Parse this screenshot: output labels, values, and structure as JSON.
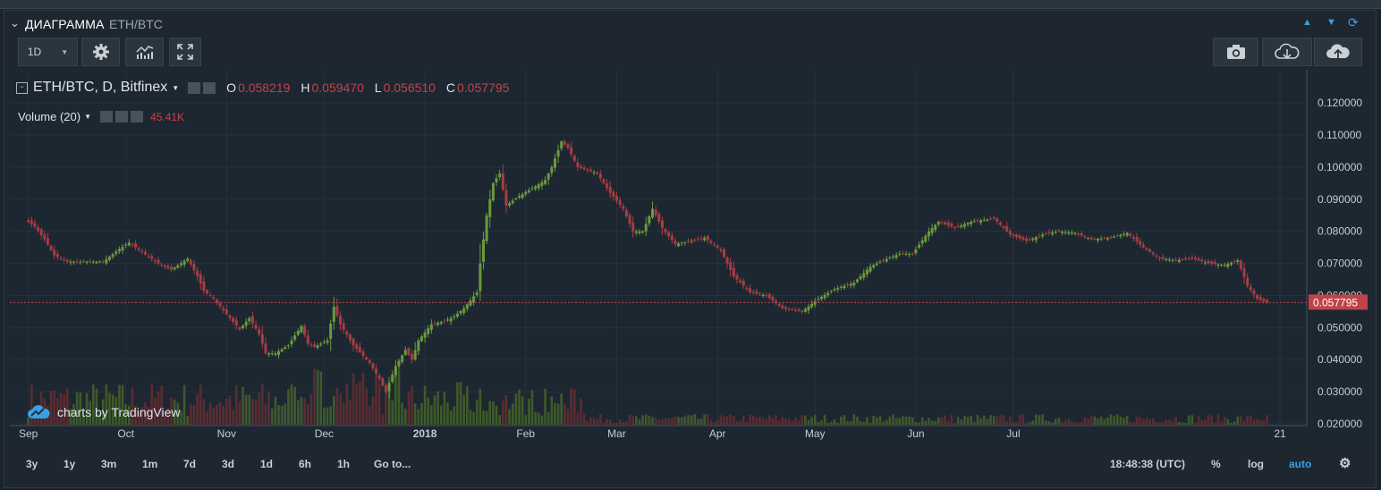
{
  "window": {
    "title": "ДИАГРАММА",
    "symbol": "ETH/BTC"
  },
  "toolbar": {
    "interval": "1D"
  },
  "legend": {
    "main": "ETH/BTC, D, Bitfinex",
    "o_label": "O",
    "o_value": "0.058219",
    "h_label": "H",
    "h_value": "0.059470",
    "l_label": "L",
    "l_value": "0.056510",
    "c_label": "C",
    "c_value": "0.057795",
    "volume_label": "Volume (20)",
    "volume_value": "45.41K"
  },
  "watermark": "charts by TradingView",
  "bottom": {
    "ranges": [
      "3y",
      "1y",
      "3m",
      "1m",
      "7d",
      "3d",
      "1d",
      "6h",
      "1h"
    ],
    "goto": "Go to...",
    "time": "18:48:38 (UTC)",
    "pct": "%",
    "log": "log",
    "auto": "auto"
  },
  "colors": {
    "up": "#6a9a3c",
    "down": "#a83c43",
    "price_line": "#c0434a",
    "accent": "#3aa0e4"
  },
  "chart_data": {
    "type": "candlestick",
    "symbol": "ETH/BTC",
    "interval": "D",
    "exchange": "Bitfinex",
    "last_price": 0.057795,
    "last_price_label": "0.057795",
    "ylim": [
      0.0175,
      0.127
    ],
    "yticks": [
      "0.020000",
      "0.030000",
      "0.040000",
      "0.050000",
      "0.060000",
      "0.070000",
      "0.080000",
      "0.090000",
      "0.100000",
      "0.110000",
      "0.120000"
    ],
    "xticks": [
      "Sep",
      "Oct",
      "Nov",
      "Dec",
      "2018",
      "Feb",
      "Mar",
      "Apr",
      "May",
      "Jun",
      "Jul",
      "21"
    ],
    "grid": true,
    "close_path": [
      [
        "2017-09-01",
        0.083
      ],
      [
        "2017-09-03",
        0.0815
      ],
      [
        "2017-09-06",
        0.0775
      ],
      [
        "2017-09-09",
        0.0725
      ],
      [
        "2017-09-13",
        0.0705
      ],
      [
        "2017-09-18",
        0.0705
      ],
      [
        "2017-09-24",
        0.0705
      ],
      [
        "2017-09-29",
        0.0745
      ],
      [
        "2017-10-02",
        0.0765
      ],
      [
        "2017-10-06",
        0.0735
      ],
      [
        "2017-10-11",
        0.07
      ],
      [
        "2017-10-15",
        0.068
      ],
      [
        "2017-10-20",
        0.0715
      ],
      [
        "2017-10-23",
        0.066
      ],
      [
        "2017-10-25",
        0.0615
      ],
      [
        "2017-10-28",
        0.059
      ],
      [
        "2017-11-02",
        0.053
      ],
      [
        "2017-11-05",
        0.0495
      ],
      [
        "2017-11-08",
        0.053
      ],
      [
        "2017-11-11",
        0.048
      ],
      [
        "2017-11-13",
        0.042
      ],
      [
        "2017-11-16",
        0.042
      ],
      [
        "2017-11-20",
        0.0445
      ],
      [
        "2017-11-24",
        0.0505
      ],
      [
        "2017-11-26",
        0.045
      ],
      [
        "2017-11-28",
        0.044
      ],
      [
        "2017-12-02",
        0.046
      ],
      [
        "2017-12-04",
        0.0565
      ],
      [
        "2017-12-06",
        0.051
      ],
      [
        "2017-12-10",
        0.0445
      ],
      [
        "2017-12-15",
        0.039
      ],
      [
        "2017-12-18",
        0.034
      ],
      [
        "2017-12-20",
        0.03
      ],
      [
        "2017-12-23",
        0.038
      ],
      [
        "2017-12-26",
        0.043
      ],
      [
        "2017-12-28",
        0.04
      ],
      [
        "2017-12-30",
        0.046
      ],
      [
        "2018-01-03",
        0.051
      ],
      [
        "2018-01-07",
        0.052
      ],
      [
        "2018-01-10",
        0.0535
      ],
      [
        "2018-01-13",
        0.056
      ],
      [
        "2018-01-17",
        0.061
      ],
      [
        "2018-01-18",
        0.07
      ],
      [
        "2018-01-20",
        0.085
      ],
      [
        "2018-01-22",
        0.095
      ],
      [
        "2018-01-24",
        0.098
      ],
      [
        "2018-01-26",
        0.088
      ],
      [
        "2018-01-30",
        0.091
      ],
      [
        "2018-02-04",
        0.094
      ],
      [
        "2018-02-07",
        0.096
      ],
      [
        "2018-02-09",
        0.1
      ],
      [
        "2018-02-12",
        0.108
      ],
      [
        "2018-02-14",
        0.106
      ],
      [
        "2018-02-17",
        0.1
      ],
      [
        "2018-02-23",
        0.098
      ],
      [
        "2018-02-27",
        0.092
      ],
      [
        "2018-03-03",
        0.087
      ],
      [
        "2018-03-06",
        0.08
      ],
      [
        "2018-03-09",
        0.08
      ],
      [
        "2018-03-12",
        0.087
      ],
      [
        "2018-03-15",
        0.081
      ],
      [
        "2018-03-19",
        0.076
      ],
      [
        "2018-03-24",
        0.077
      ],
      [
        "2018-03-28",
        0.078
      ],
      [
        "2018-04-02",
        0.074
      ],
      [
        "2018-04-06",
        0.066
      ],
      [
        "2018-04-11",
        0.061
      ],
      [
        "2018-04-16",
        0.06
      ],
      [
        "2018-04-21",
        0.056
      ],
      [
        "2018-04-27",
        0.055
      ],
      [
        "2018-05-02",
        0.059
      ],
      [
        "2018-05-07",
        0.062
      ],
      [
        "2018-05-13",
        0.064
      ],
      [
        "2018-05-18",
        0.069
      ],
      [
        "2018-05-22",
        0.071
      ],
      [
        "2018-05-27",
        0.073
      ],
      [
        "2018-05-31",
        0.073
      ],
      [
        "2018-06-05",
        0.08
      ],
      [
        "2018-06-08",
        0.083
      ],
      [
        "2018-06-13",
        0.081
      ],
      [
        "2018-06-18",
        0.083
      ],
      [
        "2018-06-25",
        0.084
      ],
      [
        "2018-06-30",
        0.079
      ],
      [
        "2018-07-05",
        0.077
      ],
      [
        "2018-07-10",
        0.079
      ],
      [
        "2018-07-15",
        0.08
      ],
      [
        "2018-07-20",
        0.0795
      ],
      [
        "2018-07-25",
        0.0775
      ],
      [
        "2018-07-31",
        0.078
      ],
      [
        "2018-08-05",
        0.0795
      ],
      [
        "2018-08-10",
        0.075
      ],
      [
        "2018-08-15",
        0.0715
      ],
      [
        "2018-08-20",
        0.071
      ],
      [
        "2018-08-25",
        0.0715
      ],
      [
        "2018-08-30",
        0.07
      ],
      [
        "2018-09-04",
        0.0695
      ],
      [
        "2018-09-08",
        0.071
      ],
      [
        "2018-09-11",
        0.063
      ],
      [
        "2018-09-14",
        0.059
      ],
      [
        "2018-09-17",
        0.0578
      ]
    ]
  }
}
